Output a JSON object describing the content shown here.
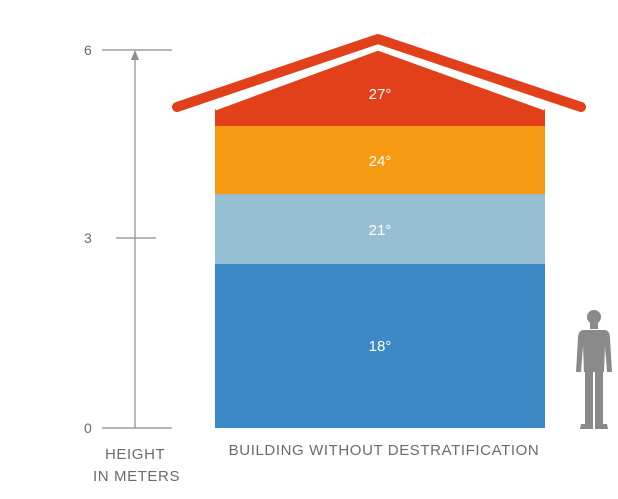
{
  "height_axis": {
    "ticks": [
      "6",
      "3",
      "0"
    ],
    "label_line1": "HEIGHT",
    "label_line2": "IN METERS"
  },
  "building": {
    "caption": "BUILDING WITHOUT DESTRATIFICATION",
    "bands": [
      {
        "label": "27°",
        "color": "#e1401a"
      },
      {
        "label": "24°",
        "color": "#f59a12"
      },
      {
        "label": "21°",
        "color": "#97bfd4"
      },
      {
        "label": "18°",
        "color": "#3b89c6"
      }
    ],
    "roof_color": "#e1401a"
  },
  "colors": {
    "axis": "#8c8c8c",
    "text": "#6b6b6b",
    "person": "#8a8a8a"
  }
}
